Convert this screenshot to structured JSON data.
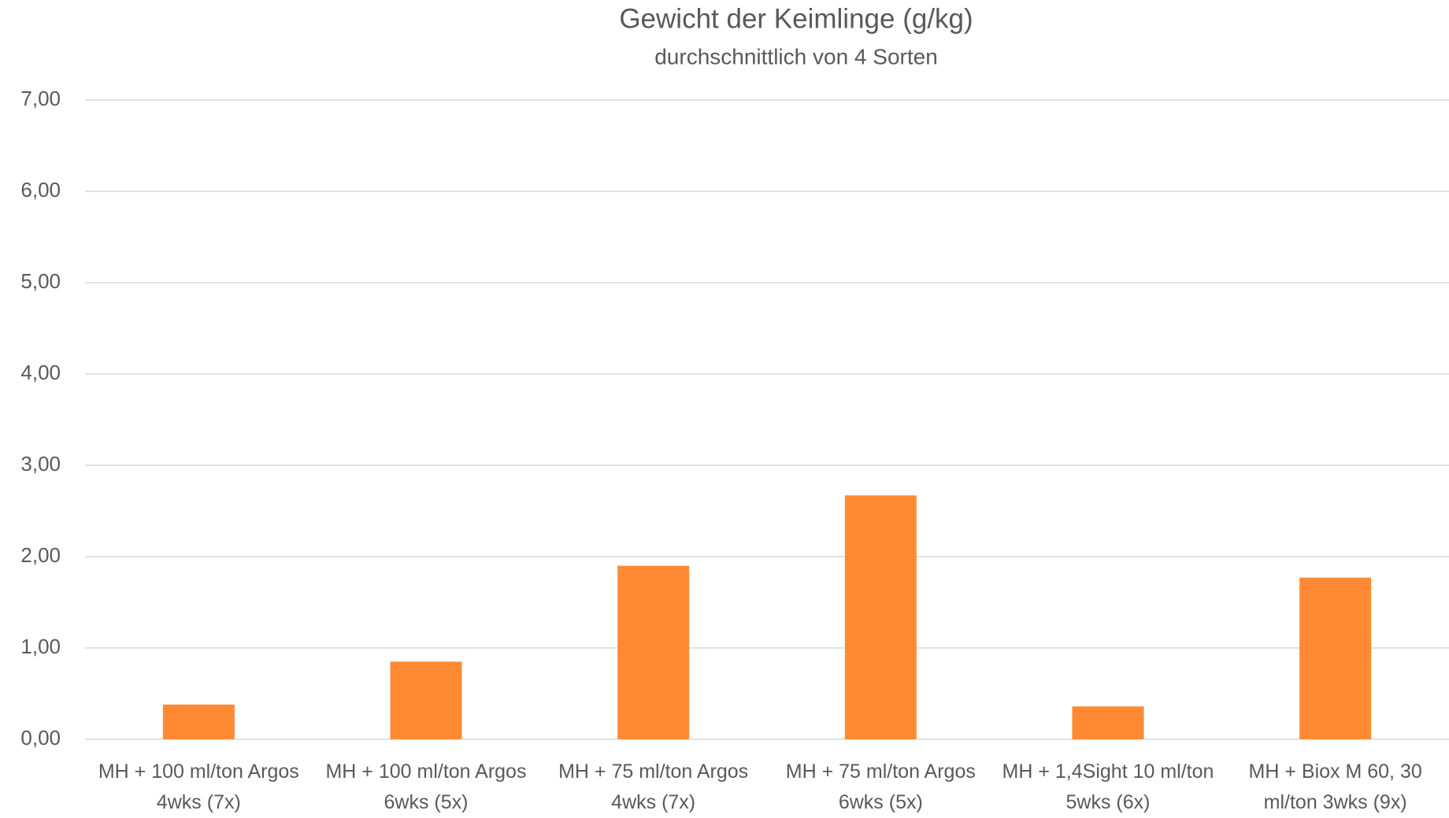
{
  "chart_data": {
    "type": "bar",
    "title": "Gewicht der Keimlinge (g/kg)",
    "subtitle": "durchschnittlich von 4 Sorten",
    "categories": [
      "MH + 100 ml/ton Argos 4wks (7x)",
      "MH + 100 ml/ton Argos 6wks (5x)",
      "MH + 75 ml/ton Argos 4wks (7x)",
      "MH + 75 ml/ton Argos 6wks (5x)",
      "MH + 1,4Sight 10 ml/ton 5wks (6x)",
      "MH + Biox M 60, 30 ml/ton 3wks (9x)"
    ],
    "values": [
      0.38,
      0.85,
      1.9,
      2.67,
      0.36,
      1.77
    ],
    "color": "#ff8a33",
    "ylim": [
      0,
      7
    ],
    "yticks": [
      {
        "value": 0,
        "label": "0,00"
      },
      {
        "value": 1,
        "label": "1,00"
      },
      {
        "value": 2,
        "label": "2,00"
      },
      {
        "value": 3,
        "label": "3,00"
      },
      {
        "value": 4,
        "label": "4,00"
      },
      {
        "value": 5,
        "label": "5,00"
      },
      {
        "value": 6,
        "label": "6,00"
      },
      {
        "value": 7,
        "label": "7,00"
      }
    ],
    "grid": true
  }
}
